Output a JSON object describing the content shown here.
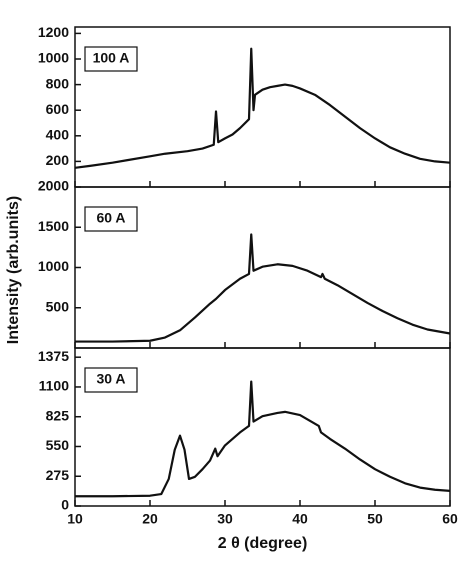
{
  "chart_data": [
    {
      "type": "line",
      "label": "100 A",
      "color": "#111111",
      "xlim": [
        10,
        60
      ],
      "xticks": [
        10,
        20,
        30,
        40,
        50,
        60
      ],
      "ylim": [
        0,
        1250
      ],
      "yticks": [
        200,
        400,
        600,
        800,
        1000,
        1200
      ],
      "x": [
        10,
        12,
        15,
        17,
        20,
        22,
        25,
        27,
        28.5,
        28.8,
        29.1,
        30,
        31,
        32,
        33.2,
        33.5,
        33.8,
        34,
        35,
        36,
        37,
        38,
        39,
        40,
        42,
        44,
        46,
        48,
        50,
        52,
        54,
        56,
        58,
        60
      ],
      "values": [
        150,
        165,
        190,
        210,
        240,
        260,
        280,
        300,
        330,
        590,
        350,
        380,
        410,
        460,
        530,
        1080,
        600,
        720,
        760,
        780,
        790,
        800,
        790,
        770,
        720,
        640,
        550,
        460,
        380,
        310,
        260,
        220,
        200,
        190
      ]
    },
    {
      "type": "line",
      "label": "60 A",
      "color": "#111111",
      "ylabel": "Intensity (arb.units)",
      "xlim": [
        10,
        60
      ],
      "xticks": [
        10,
        20,
        30,
        40,
        50,
        60
      ],
      "ylim": [
        0,
        2000
      ],
      "yticks": [
        500,
        1000,
        1500,
        2000
      ],
      "x": [
        10,
        15,
        20,
        22,
        24,
        26,
        28,
        28.8,
        30,
        32,
        33.2,
        33.5,
        33.8,
        35,
        37,
        39,
        41,
        42.8,
        43,
        43.3,
        45,
        47,
        49,
        51,
        53,
        55,
        57,
        60
      ],
      "values": [
        80,
        80,
        90,
        130,
        220,
        380,
        550,
        610,
        720,
        860,
        920,
        1410,
        960,
        1010,
        1040,
        1020,
        960,
        880,
        920,
        860,
        780,
        670,
        560,
        460,
        370,
        290,
        230,
        180
      ]
    },
    {
      "type": "line",
      "label": "30 A",
      "color": "#111111",
      "xlabel": "2 θ (degree)",
      "xlim": [
        10,
        60
      ],
      "xticks": [
        10,
        20,
        30,
        40,
        50,
        60
      ],
      "ylim": [
        0,
        1460
      ],
      "yticks": [
        0,
        275,
        550,
        825,
        1100,
        1375
      ],
      "x": [
        10,
        15,
        20,
        21.5,
        22.5,
        23.3,
        24,
        24.6,
        25.2,
        26,
        27,
        28,
        28.7,
        29,
        30,
        32,
        33.2,
        33.5,
        33.8,
        35,
        37,
        38,
        40,
        42.5,
        42.8,
        44,
        46,
        48,
        50,
        52,
        54,
        56,
        58,
        60
      ],
      "values": [
        90,
        90,
        95,
        110,
        250,
        520,
        650,
        520,
        250,
        270,
        340,
        420,
        530,
        460,
        560,
        680,
        740,
        1150,
        780,
        830,
        860,
        870,
        840,
        740,
        680,
        620,
        530,
        430,
        340,
        270,
        210,
        170,
        150,
        140
      ]
    }
  ]
}
